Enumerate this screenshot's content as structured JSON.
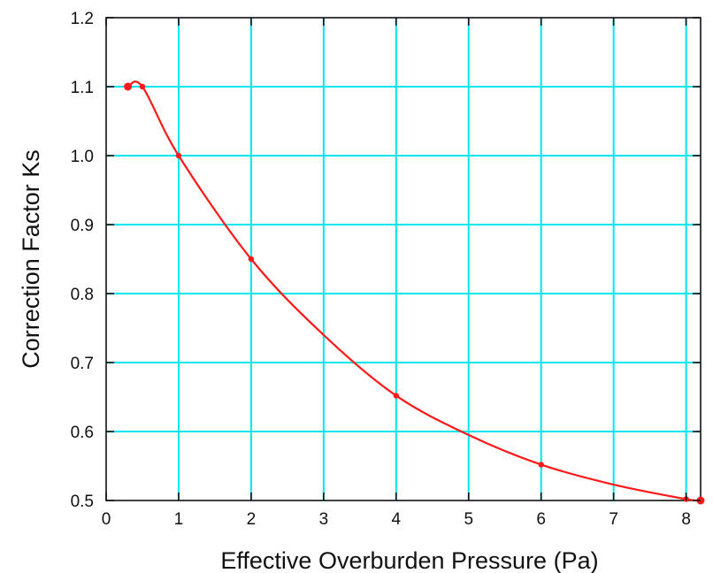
{
  "chart_data": {
    "type": "line",
    "title": "",
    "xlabel": "Effective Overburden Pressure (Pa)",
    "ylabel": "Correction Factor Ks",
    "xlim": [
      0,
      8.2
    ],
    "ylim": [
      0.5,
      1.2
    ],
    "x_ticks": [
      {
        "value": 0,
        "label": "0"
      },
      {
        "value": 1,
        "label": "1"
      },
      {
        "value": 2,
        "label": "2"
      },
      {
        "value": 3,
        "label": "3"
      },
      {
        "value": 4,
        "label": "4"
      },
      {
        "value": 5,
        "label": "5"
      },
      {
        "value": 6,
        "label": "6"
      },
      {
        "value": 7,
        "label": "7"
      },
      {
        "value": 8,
        "label": "8"
      }
    ],
    "y_ticks": [
      {
        "value": 0.5,
        "label": "0.5"
      },
      {
        "value": 0.6,
        "label": "0.6"
      },
      {
        "value": 0.7,
        "label": "0.7"
      },
      {
        "value": 0.8,
        "label": "0.8"
      },
      {
        "value": 0.9,
        "label": "0.9"
      },
      {
        "value": 1.0,
        "label": "1.0"
      },
      {
        "value": 1.1,
        "label": "1.1"
      },
      {
        "value": 1.2,
        "label": "1.2"
      }
    ],
    "grid": true,
    "legend": false,
    "colors": {
      "grid": "#00e5ee",
      "series": "#ff1a1a",
      "frame": "#111111"
    },
    "series": [
      {
        "x": [
          0.3,
          0.5,
          1,
          2,
          3,
          4,
          5,
          6,
          7,
          8,
          8.2
        ],
        "y": [
          1.1,
          1.1,
          1.0,
          0.85,
          0.74,
          0.652,
          0.595,
          0.552,
          0.523,
          0.502,
          0.5
        ],
        "markers_at": [
          0.3,
          0.5,
          1,
          2,
          4,
          6,
          8,
          8.2
        ]
      }
    ]
  }
}
